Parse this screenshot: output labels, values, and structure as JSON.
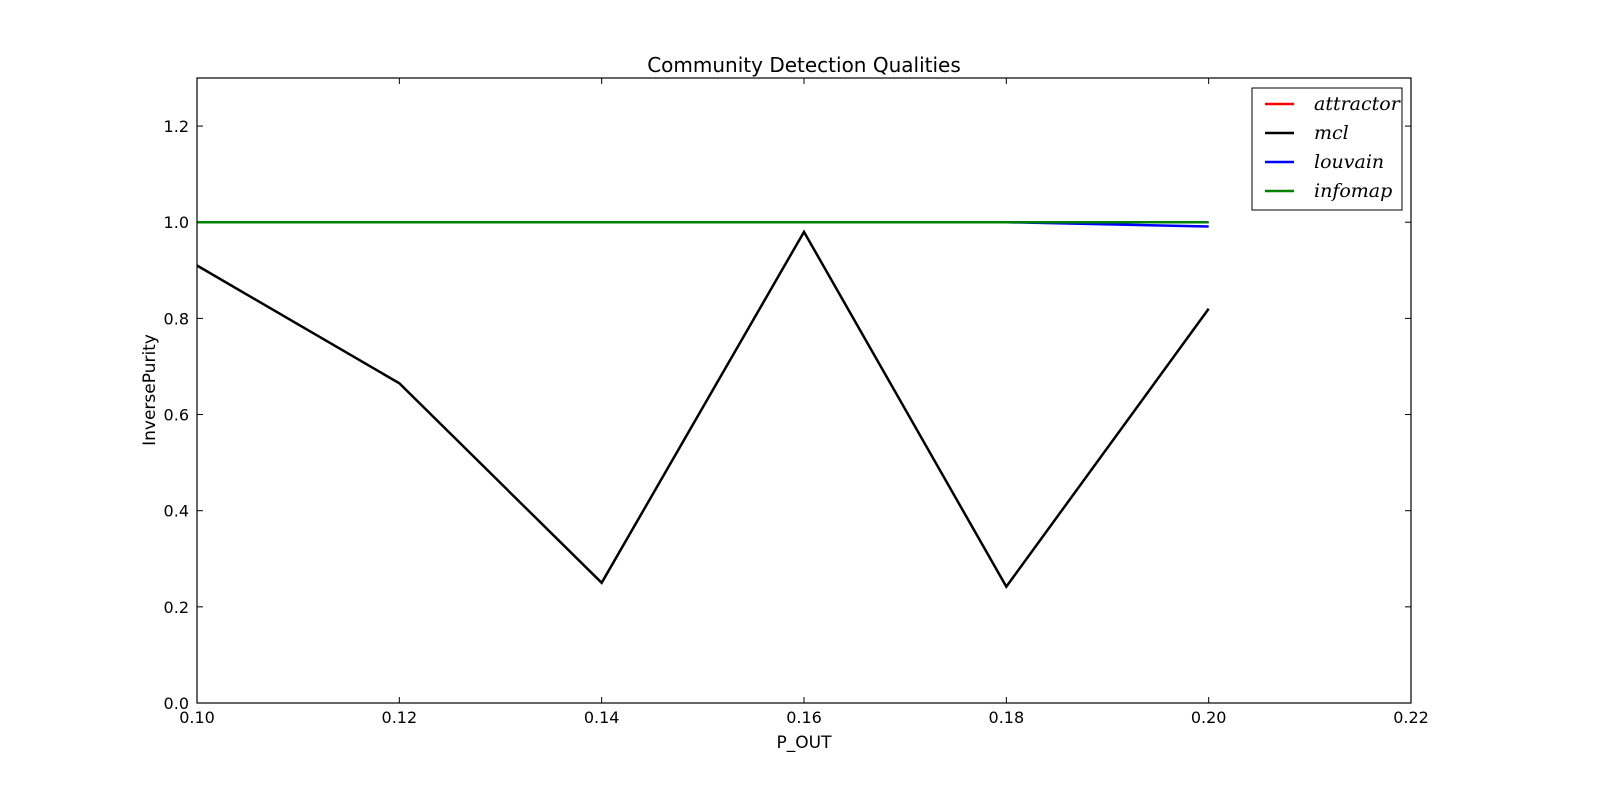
{
  "chart_data": {
    "type": "line",
    "title": "Community Detection Qualities",
    "xlabel": "P_OUT",
    "ylabel": "InversePurity",
    "xlim": [
      0.1,
      0.22
    ],
    "ylim": [
      0.0,
      1.3
    ],
    "xticks": [
      0.1,
      0.12,
      0.14,
      0.16,
      0.18,
      0.2,
      0.22
    ],
    "xtick_labels": [
      "0.10",
      "0.12",
      "0.14",
      "0.16",
      "0.18",
      "0.20",
      "0.22"
    ],
    "yticks": [
      0.0,
      0.2,
      0.4,
      0.6,
      0.8,
      1.0,
      1.2
    ],
    "ytick_labels": [
      "0.0",
      "0.2",
      "0.4",
      "0.6",
      "0.8",
      "1.0",
      "1.2"
    ],
    "grid": false,
    "legend_position": "top-right",
    "x": [
      0.1,
      0.12,
      0.14,
      0.16,
      0.18,
      0.2
    ],
    "series": [
      {
        "name": "attractor",
        "color": "#ff0000",
        "values": [
          1.0,
          1.0,
          1.0,
          1.0,
          1.0,
          1.0
        ]
      },
      {
        "name": "mcl",
        "color": "#000000",
        "values": [
          0.91,
          0.665,
          0.25,
          0.98,
          0.242,
          0.82
        ]
      },
      {
        "name": "louvain",
        "color": "#0000ff",
        "values": [
          1.0,
          1.0,
          1.0,
          1.0,
          1.0,
          0.991
        ]
      },
      {
        "name": "infomap",
        "color": "#008000",
        "values": [
          1.0,
          1.0,
          1.0,
          1.0,
          1.0,
          1.0
        ]
      }
    ]
  }
}
